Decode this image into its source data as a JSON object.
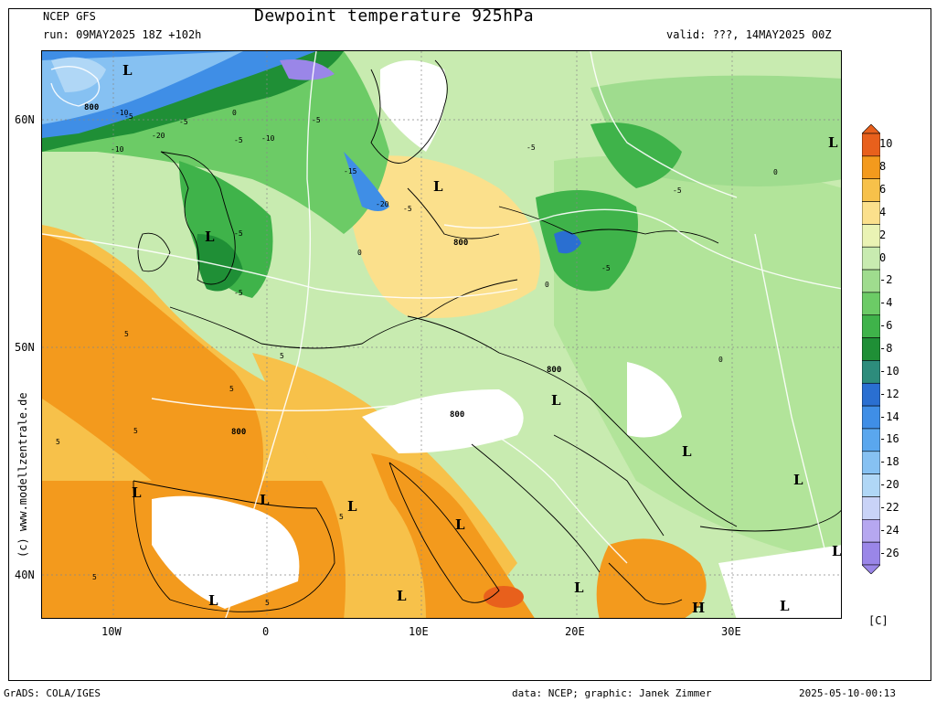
{
  "header": {
    "source": "NCEP GFS",
    "run": "run: 09MAY2025 18Z +102h",
    "title": "Dewpoint temperature 925hPa",
    "valid": "valid: ???, 14MAY2025 00Z"
  },
  "axes": {
    "lat_labels": [
      "60N",
      "50N",
      "40N"
    ],
    "lon_labels": [
      "10W",
      "0",
      "10E",
      "20E",
      "30E"
    ]
  },
  "side_label": "(c) www.modellzentrale.de",
  "colorbar": {
    "unit": "[C]",
    "levels": [
      "10",
      "8",
      "6",
      "4",
      "2",
      "0",
      "-2",
      "-4",
      "-6",
      "-8",
      "-10",
      "-12",
      "-14",
      "-16",
      "-18",
      "-20",
      "-22",
      "-24",
      "-26"
    ],
    "colors": [
      "#e8601c",
      "#f39a1d",
      "#f7c14a",
      "#fbe08c",
      "#eaf3b4",
      "#c8ebb0",
      "#9fdc8e",
      "#6ccb66",
      "#3fb34a",
      "#1f8f36",
      "#2d8c7c",
      "#2a6fd1",
      "#3f8ee6",
      "#5aa7ee",
      "#86c1f2",
      "#b0d7f6",
      "#c9d3f7",
      "#b6a7f0",
      "#9a86e8"
    ]
  },
  "map_labels": {
    "pressure_labels": [
      "800",
      "800",
      "800",
      "800",
      "800"
    ],
    "low_markers": [
      "L",
      "L",
      "L",
      "L",
      "L",
      "L",
      "L",
      "L",
      "L",
      "L",
      "L",
      "L",
      "L",
      "L",
      "L",
      "L"
    ],
    "high_markers": [
      "H"
    ],
    "contour_values": [
      "-10",
      "-5",
      "-20",
      "-10",
      "-5",
      "-5",
      "-5",
      "-15",
      "-20",
      "-10",
      "-5",
      "-5",
      "-5",
      "-5",
      "-5",
      "-5",
      "0",
      "0",
      "0",
      "0",
      "0",
      "5",
      "5",
      "5",
      "5",
      "5",
      "5",
      "5",
      "5"
    ]
  },
  "footer": {
    "left": "GrADS: COLA/IGES",
    "credit": "data: NCEP; graphic: Janek Zimmer",
    "timestamp": "2025-05-10-00:13"
  }
}
